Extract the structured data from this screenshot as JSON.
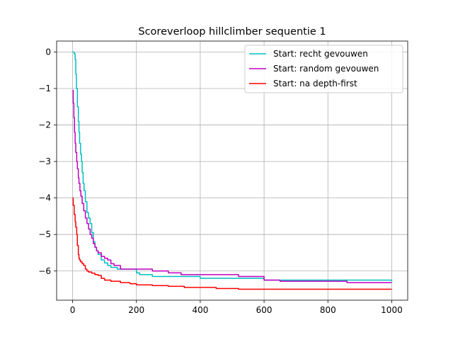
{
  "chart_data": {
    "type": "line",
    "title": "Scoreverloop hillclimber sequentie 1",
    "xlabel": "",
    "ylabel": "",
    "xlim": [
      -50,
      1050
    ],
    "ylim": [
      -6.8,
      0.3
    ],
    "x_ticks": [
      0,
      200,
      400,
      600,
      800,
      1000
    ],
    "y_ticks": [
      0,
      -1,
      -2,
      -3,
      -4,
      -5,
      -6
    ],
    "x_tick_labels": [
      "0",
      "200",
      "400",
      "600",
      "800",
      "1000"
    ],
    "y_tick_labels": [
      "0",
      "−1",
      "−2",
      "−3",
      "−4",
      "−5",
      "−6"
    ],
    "grid": true,
    "legend_position": "top-right",
    "series": [
      {
        "name": "Start: recht gevouwen",
        "color": "#00bfbf",
        "x": [
          0,
          5,
          8,
          10,
          12,
          15,
          18,
          20,
          22,
          25,
          28,
          30,
          33,
          36,
          40,
          45,
          50,
          55,
          60,
          65,
          70,
          75,
          80,
          90,
          100,
          110,
          120,
          140,
          150,
          180,
          200,
          210,
          250,
          300,
          400,
          500,
          600,
          700,
          800,
          850,
          1000
        ],
        "y": [
          0,
          -0.05,
          -0.2,
          -0.6,
          -1.0,
          -1.5,
          -1.9,
          -2.2,
          -2.5,
          -2.8,
          -3.0,
          -3.3,
          -3.6,
          -3.8,
          -4.1,
          -4.4,
          -4.55,
          -4.7,
          -4.95,
          -5.2,
          -5.35,
          -5.45,
          -5.55,
          -5.7,
          -5.78,
          -5.85,
          -5.9,
          -5.95,
          -5.95,
          -5.95,
          -6.05,
          -6.1,
          -6.15,
          -6.15,
          -6.2,
          -6.2,
          -6.25,
          -6.25,
          -6.25,
          -6.25,
          -6.28
        ]
      },
      {
        "name": "Start: random gevouwen",
        "color": "#bf00bf",
        "x": [
          0,
          2,
          4,
          6,
          8,
          10,
          13,
          15,
          18,
          20,
          23,
          26,
          30,
          35,
          40,
          45,
          50,
          55,
          60,
          65,
          70,
          75,
          80,
          90,
          100,
          110,
          120,
          130,
          150,
          200,
          250,
          300,
          340,
          400,
          500,
          520,
          600,
          650,
          700,
          800,
          860,
          1000
        ],
        "y": [
          -1.05,
          -1.4,
          -1.8,
          -2.2,
          -2.5,
          -2.75,
          -3.0,
          -3.2,
          -3.45,
          -3.6,
          -3.8,
          -3.95,
          -4.15,
          -4.35,
          -4.55,
          -4.7,
          -4.85,
          -5.0,
          -5.1,
          -5.25,
          -5.35,
          -5.45,
          -5.5,
          -5.6,
          -5.65,
          -5.7,
          -5.8,
          -5.85,
          -5.95,
          -5.95,
          -6.0,
          -6.05,
          -6.1,
          -6.1,
          -6.1,
          -6.15,
          -6.25,
          -6.28,
          -6.28,
          -6.28,
          -6.32,
          -6.32
        ]
      },
      {
        "name": "Start: na depth-first",
        "color": "#ff0000",
        "x": [
          0,
          2,
          5,
          8,
          10,
          13,
          15,
          18,
          20,
          22,
          25,
          30,
          35,
          40,
          45,
          50,
          60,
          70,
          80,
          90,
          100,
          120,
          150,
          180,
          200,
          250,
          300,
          350,
          400,
          450,
          500,
          520,
          550,
          600,
          700,
          800,
          900,
          1000
        ],
        "y": [
          -4.0,
          -4.2,
          -4.45,
          -4.65,
          -4.8,
          -5.0,
          -5.3,
          -5.55,
          -5.65,
          -5.7,
          -5.75,
          -5.8,
          -5.85,
          -5.95,
          -6.0,
          -6.03,
          -6.06,
          -6.1,
          -6.12,
          -6.2,
          -6.25,
          -6.28,
          -6.32,
          -6.35,
          -6.38,
          -6.4,
          -6.42,
          -6.45,
          -6.45,
          -6.48,
          -6.48,
          -6.5,
          -6.5,
          -6.5,
          -6.5,
          -6.5,
          -6.5,
          -6.5
        ]
      }
    ]
  }
}
